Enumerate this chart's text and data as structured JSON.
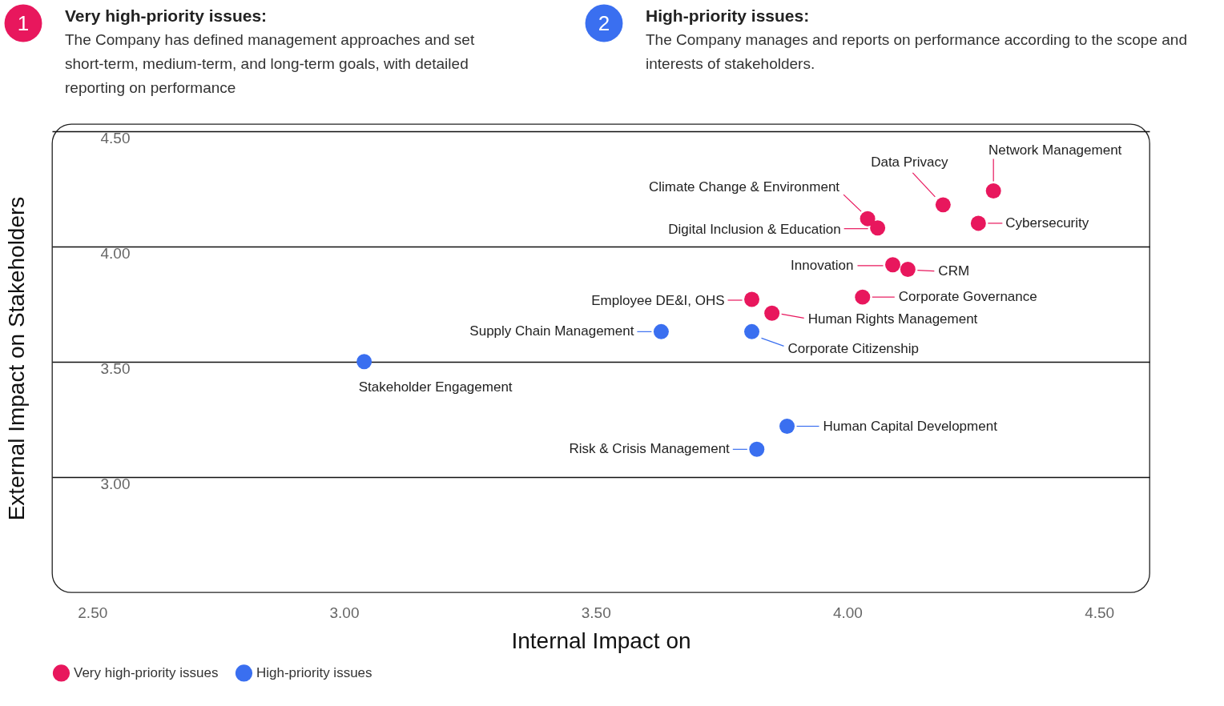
{
  "chart_data": {
    "type": "scatter",
    "xlabel": "Internal Impact on",
    "ylabel": "External Impact on Stakeholders",
    "xlim": [
      2.42,
      4.6
    ],
    "ylim": [
      2.5,
      4.53
    ],
    "xticks": [
      {
        "value": 2.5,
        "label": "2.50"
      },
      {
        "value": 3.0,
        "label": "3.00"
      },
      {
        "value": 3.5,
        "label": "3.50"
      },
      {
        "value": 4.0,
        "label": "4.00"
      },
      {
        "value": 4.5,
        "label": "4.50"
      }
    ],
    "yticks": [
      {
        "value": 3.0,
        "label": "3.00"
      },
      {
        "value": 3.5,
        "label": "3.50"
      },
      {
        "value": 4.0,
        "label": "4.00"
      },
      {
        "value": 4.5,
        "label": "4.50"
      }
    ],
    "grid": "y",
    "legend": "bottom left",
    "marker": "circle",
    "series": [
      {
        "name": "Very high-priority issues",
        "color": "#e8175d",
        "x": [
          4.29,
          4.19,
          4.04,
          4.06,
          4.26,
          4.09,
          4.12,
          4.03,
          3.81,
          3.85
        ],
        "values": [
          4.24,
          4.18,
          4.12,
          4.08,
          4.1,
          3.92,
          3.9,
          3.78,
          3.77,
          3.71
        ]
      },
      {
        "name": "High-priority issues",
        "color": "#3a6ff0",
        "x": [
          3.63,
          3.81,
          3.04,
          3.88,
          3.82
        ],
        "values": [
          3.63,
          3.63,
          3.5,
          3.22,
          3.12
        ]
      }
    ],
    "annotations": [
      "1",
      "Very high-priority issues:",
      "The Company has defined management approaches and set short-term, medium-term, and long-term goals, with detailed reporting on performance",
      "2",
      "High-priority issues:",
      "The Company manages and reports on performance according to the scope and interests of stakeholders.",
      {
        "text": "Network Management",
        "x": 4.29,
        "y": 4.24
      },
      {
        "text": "Data Privacy",
        "x": 4.19,
        "y": 4.18
      },
      {
        "text": "Climate Change & Environment",
        "x": 4.04,
        "y": 4.12
      },
      {
        "text": "Digital Inclusion & Education",
        "x": 4.06,
        "y": 4.08
      },
      {
        "text": "Cybersecurity",
        "x": 4.26,
        "y": 4.1
      },
      {
        "text": "Innovation",
        "x": 4.09,
        "y": 3.92
      },
      {
        "text": "CRM",
        "x": 4.12,
        "y": 3.9
      },
      {
        "text": "Corporate Governance",
        "x": 4.03,
        "y": 3.78
      },
      {
        "text": "Employee DE&I, OHS",
        "x": 3.81,
        "y": 3.77
      },
      {
        "text": "Human Rights Management",
        "x": 3.85,
        "y": 3.71
      },
      {
        "text": "Supply Chain Management",
        "x": 3.63,
        "y": 3.63
      },
      {
        "text": "Corporate Citizenship",
        "x": 3.81,
        "y": 3.63
      },
      {
        "text": "Stakeholder Engagement",
        "x": 3.04,
        "y": 3.5
      },
      {
        "text": "Human Capital Development",
        "x": 3.88,
        "y": 3.22
      },
      {
        "text": "Risk & Crisis Management",
        "x": 3.82,
        "y": 3.12
      }
    ]
  }
}
